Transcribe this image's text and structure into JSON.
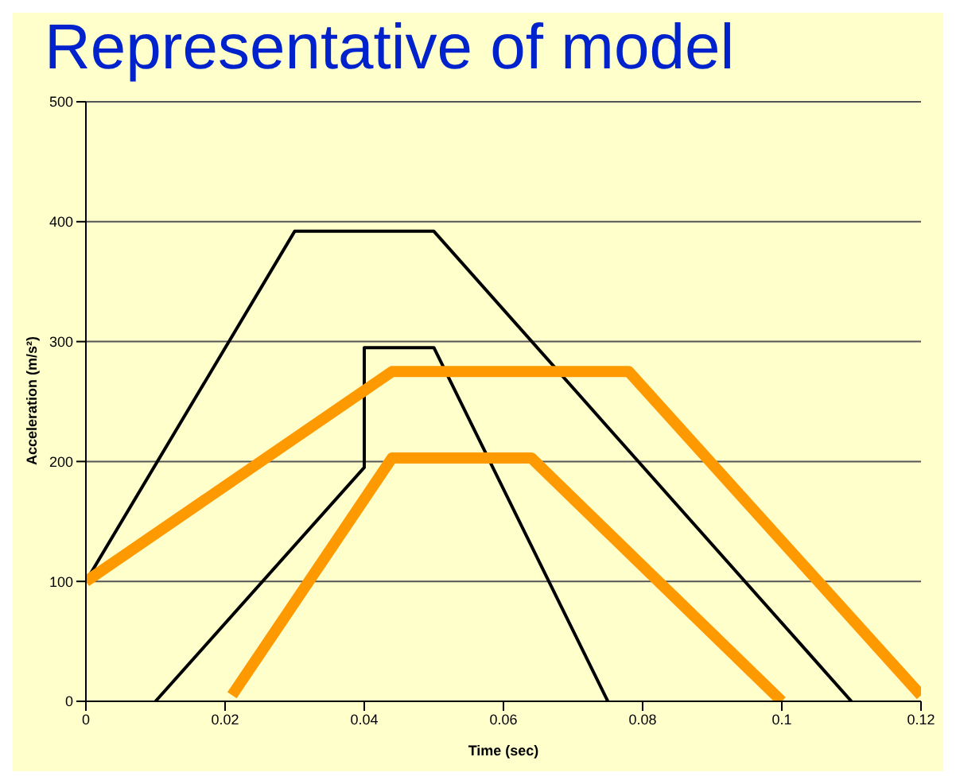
{
  "chart_data": {
    "type": "line",
    "title": "Representative of model",
    "xlabel": "Time (sec)",
    "ylabel": "Acceleration (m/s²)",
    "xlim": [
      0,
      0.12
    ],
    "xticks": [
      0,
      0.02,
      0.04,
      0.06,
      0.08,
      0.1,
      0.12
    ],
    "ylim": [
      0,
      500
    ],
    "yticks": [
      0,
      100,
      200,
      300,
      400,
      500
    ],
    "grid": "y",
    "marker": "none",
    "line_style": "solid",
    "series": [
      {
        "color": "#000000",
        "x": [
          0,
          0.03,
          0.05,
          0.11
        ],
        "values": [
          100,
          392,
          392,
          0
        ]
      },
      {
        "color": "#000000",
        "x": [
          0.01,
          0.04,
          0.04,
          0.05,
          0.075
        ],
        "values": [
          0,
          195,
          295,
          295,
          0
        ]
      },
      {
        "color": "#ff9900",
        "x": [
          0,
          0.044,
          0.078,
          0.12
        ],
        "values": [
          100,
          275,
          275,
          5
        ]
      },
      {
        "color": "#ff9900",
        "x": [
          0.021,
          0.044,
          0.064,
          0.1
        ],
        "values": [
          5,
          203,
          203,
          0
        ]
      }
    ]
  }
}
